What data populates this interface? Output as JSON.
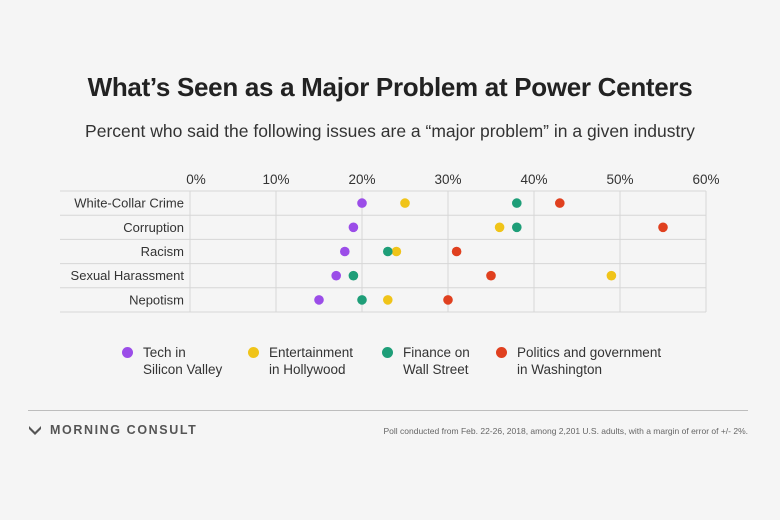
{
  "title": "What’s Seen as a Major Problem at Power Centers",
  "subtitle": "Percent who said the following issues are a “major problem” in a given industry",
  "chart_data": {
    "type": "scatter",
    "title": "What’s Seen as a Major Problem at Power Centers",
    "subtitle": "Percent who said the following issues are a “major problem” in a given industry",
    "xlim": [
      0,
      60
    ],
    "x_ticks": [
      0,
      10,
      20,
      30,
      40,
      50,
      60
    ],
    "x_tick_labels": [
      "0%",
      "10%",
      "20%",
      "30%",
      "40%",
      "50%",
      "60%"
    ],
    "categories": [
      "White-Collar Crime",
      "Corruption",
      "Racism",
      "Sexual Harassment",
      "Nepotism"
    ],
    "series": [
      {
        "name": "Tech in\nSilicon Valley",
        "color": "#9b4de8",
        "values": [
          20,
          19,
          18,
          17,
          15
        ]
      },
      {
        "name": "Entertainment\nin Hollywood",
        "color": "#f0c419",
        "values": [
          25,
          36,
          24,
          49,
          23
        ]
      },
      {
        "name": "Finance on\nWall Street",
        "color": "#1e9e78",
        "values": [
          38,
          38,
          23,
          19,
          20
        ]
      },
      {
        "name": "Politics and government\nin Washington",
        "color": "#e0401f",
        "values": [
          43,
          55,
          31,
          35,
          30
        ]
      }
    ],
    "grid": true,
    "legend": "bottom"
  },
  "footer": {
    "brand": "MORNING CONSULT",
    "note": "Poll conducted from Feb. 22-26, 2018, among 2,201 U.S. adults, with a margin of error of +/- 2%."
  },
  "colors": {
    "background": "#f5f5f5",
    "grid": "#d6d6d6",
    "brand": "#555555"
  }
}
